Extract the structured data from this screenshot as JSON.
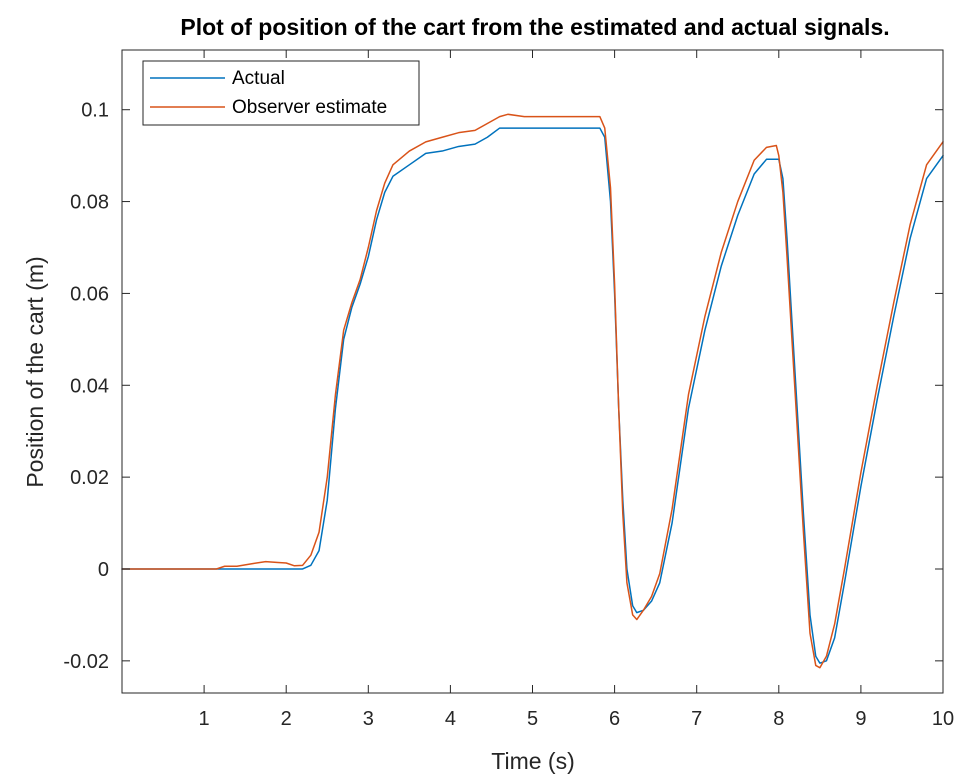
{
  "chart_data": {
    "type": "line",
    "title": "Plot of position of the cart from the estimated and actual signals.",
    "xlabel": "Time (s)",
    "ylabel": "Position of the cart (m)",
    "xlim": [
      0,
      10
    ],
    "ylim": [
      -0.027,
      0.113
    ],
    "xticks": [
      1,
      2,
      3,
      4,
      5,
      6,
      7,
      8,
      9,
      10
    ],
    "xtick_labels": [
      "1",
      "2",
      "3",
      "4",
      "5",
      "6",
      "7",
      "8",
      "9",
      "10"
    ],
    "yticks": [
      -0.02,
      0,
      0.02,
      0.04,
      0.06,
      0.08,
      0.1
    ],
    "ytick_labels": [
      "-0.02",
      "0",
      "0.02",
      "0.04",
      "0.06",
      "0.08",
      "0.1"
    ],
    "grid": false,
    "legend_position": "top-left",
    "series": [
      {
        "name": "Actual",
        "color": "#0072BD",
        "points": [
          [
            0,
            0
          ],
          [
            1,
            0
          ],
          [
            2,
            0
          ],
          [
            2.2,
            0
          ],
          [
            2.3,
            0.0008
          ],
          [
            2.4,
            0.004
          ],
          [
            2.5,
            0.015
          ],
          [
            2.6,
            0.035
          ],
          [
            2.7,
            0.05
          ],
          [
            2.8,
            0.057
          ],
          [
            2.9,
            0.062
          ],
          [
            3.0,
            0.068
          ],
          [
            3.1,
            0.076
          ],
          [
            3.2,
            0.082
          ],
          [
            3.3,
            0.0855
          ],
          [
            3.5,
            0.088
          ],
          [
            3.7,
            0.0905
          ],
          [
            3.9,
            0.091
          ],
          [
            4.1,
            0.092
          ],
          [
            4.3,
            0.0925
          ],
          [
            4.45,
            0.094
          ],
          [
            4.6,
            0.096
          ],
          [
            4.8,
            0.096
          ],
          [
            5.0,
            0.096
          ],
          [
            5.4,
            0.096
          ],
          [
            5.82,
            0.096
          ],
          [
            5.88,
            0.094
          ],
          [
            5.95,
            0.08
          ],
          [
            6.0,
            0.06
          ],
          [
            6.05,
            0.035
          ],
          [
            6.1,
            0.015
          ],
          [
            6.15,
            0.0
          ],
          [
            6.22,
            -0.008
          ],
          [
            6.27,
            -0.0095
          ],
          [
            6.35,
            -0.009
          ],
          [
            6.45,
            -0.007
          ],
          [
            6.55,
            -0.003
          ],
          [
            6.7,
            0.01
          ],
          [
            6.9,
            0.035
          ],
          [
            7.1,
            0.052
          ],
          [
            7.3,
            0.066
          ],
          [
            7.5,
            0.077
          ],
          [
            7.7,
            0.086
          ],
          [
            7.85,
            0.0892
          ],
          [
            8.0,
            0.0892
          ],
          [
            8.05,
            0.085
          ],
          [
            8.1,
            0.072
          ],
          [
            8.2,
            0.042
          ],
          [
            8.3,
            0.012
          ],
          [
            8.38,
            -0.01
          ],
          [
            8.45,
            -0.019
          ],
          [
            8.5,
            -0.0205
          ],
          [
            8.58,
            -0.02
          ],
          [
            8.68,
            -0.015
          ],
          [
            8.8,
            -0.003
          ],
          [
            9.0,
            0.018
          ],
          [
            9.2,
            0.037
          ],
          [
            9.4,
            0.055
          ],
          [
            9.6,
            0.072
          ],
          [
            9.8,
            0.085
          ],
          [
            10.0,
            0.09
          ]
        ]
      },
      {
        "name": "Observer estimate",
        "color": "#D95319",
        "points": [
          [
            0,
            0
          ],
          [
            1.15,
            0
          ],
          [
            1.25,
            0.0006
          ],
          [
            1.4,
            0.0006
          ],
          [
            1.5,
            0.0009
          ],
          [
            1.6,
            0.0012
          ],
          [
            1.75,
            0.0016
          ],
          [
            1.9,
            0.0014
          ],
          [
            2.0,
            0.0013
          ],
          [
            2.1,
            0.0007
          ],
          [
            2.2,
            0.0008
          ],
          [
            2.3,
            0.003
          ],
          [
            2.4,
            0.008
          ],
          [
            2.5,
            0.02
          ],
          [
            2.6,
            0.038
          ],
          [
            2.7,
            0.052
          ],
          [
            2.8,
            0.058
          ],
          [
            2.9,
            0.063
          ],
          [
            3.0,
            0.07
          ],
          [
            3.1,
            0.078
          ],
          [
            3.2,
            0.084
          ],
          [
            3.3,
            0.088
          ],
          [
            3.5,
            0.091
          ],
          [
            3.7,
            0.093
          ],
          [
            3.9,
            0.094
          ],
          [
            4.1,
            0.095
          ],
          [
            4.3,
            0.0955
          ],
          [
            4.45,
            0.097
          ],
          [
            4.6,
            0.0985
          ],
          [
            4.7,
            0.099
          ],
          [
            4.9,
            0.0985
          ],
          [
            5.2,
            0.0985
          ],
          [
            5.5,
            0.0985
          ],
          [
            5.82,
            0.0985
          ],
          [
            5.88,
            0.096
          ],
          [
            5.95,
            0.083
          ],
          [
            6.0,
            0.062
          ],
          [
            6.05,
            0.035
          ],
          [
            6.1,
            0.012
          ],
          [
            6.15,
            -0.003
          ],
          [
            6.22,
            -0.01
          ],
          [
            6.27,
            -0.011
          ],
          [
            6.35,
            -0.009
          ],
          [
            6.45,
            -0.006
          ],
          [
            6.55,
            -0.001
          ],
          [
            6.7,
            0.013
          ],
          [
            6.9,
            0.038
          ],
          [
            7.1,
            0.055
          ],
          [
            7.3,
            0.069
          ],
          [
            7.5,
            0.08
          ],
          [
            7.7,
            0.089
          ],
          [
            7.85,
            0.0918
          ],
          [
            7.97,
            0.0922
          ],
          [
            8.0,
            0.09
          ],
          [
            8.05,
            0.082
          ],
          [
            8.1,
            0.068
          ],
          [
            8.2,
            0.038
          ],
          [
            8.3,
            0.008
          ],
          [
            8.38,
            -0.014
          ],
          [
            8.45,
            -0.021
          ],
          [
            8.5,
            -0.0215
          ],
          [
            8.58,
            -0.019
          ],
          [
            8.68,
            -0.012
          ],
          [
            8.8,
            0.0
          ],
          [
            9.0,
            0.021
          ],
          [
            9.2,
            0.04
          ],
          [
            9.4,
            0.058
          ],
          [
            9.6,
            0.075
          ],
          [
            9.8,
            0.088
          ],
          [
            10.0,
            0.093
          ]
        ]
      }
    ]
  }
}
